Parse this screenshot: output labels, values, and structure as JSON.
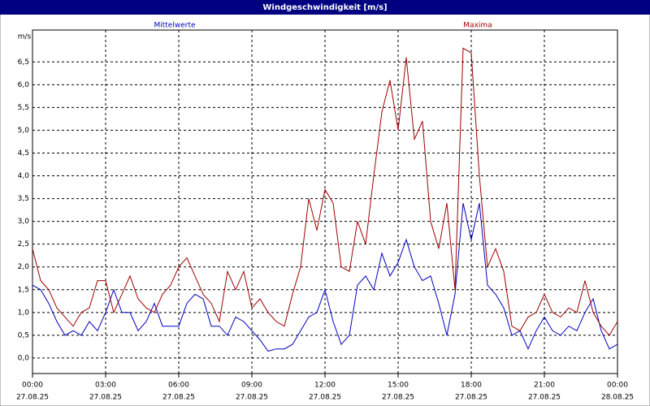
{
  "chart_data": {
    "type": "line",
    "title": "Windgeschwindigkeit [m/s]",
    "y_unit": "m/s",
    "x": [
      0,
      20,
      40,
      60,
      80,
      100,
      120,
      140,
      160,
      180,
      200,
      220,
      240,
      260,
      280,
      300,
      320,
      340,
      360,
      380,
      400,
      420,
      440,
      460,
      480,
      500,
      520,
      540,
      560,
      580,
      600,
      620,
      640,
      660,
      680,
      700,
      720,
      740,
      760,
      780,
      800,
      820,
      840,
      860,
      880,
      900,
      920,
      940,
      960,
      980,
      1000,
      1020,
      1040,
      1060,
      1080,
      1100,
      1120,
      1140,
      1160,
      1180,
      1200,
      1220,
      1240,
      1260,
      1280,
      1300,
      1320,
      1340,
      1360,
      1380,
      1400,
      1420,
      1440
    ],
    "series": [
      {
        "name": "Mittelwerte",
        "color": "#0000c0",
        "values": [
          1.6,
          1.5,
          1.2,
          0.8,
          0.5,
          0.6,
          0.5,
          0.8,
          0.6,
          1.0,
          1.5,
          1.0,
          1.0,
          0.6,
          0.8,
          1.2,
          0.7,
          0.7,
          0.7,
          1.2,
          1.4,
          1.3,
          0.7,
          0.7,
          0.5,
          0.9,
          0.8,
          0.6,
          0.4,
          0.15,
          0.2,
          0.2,
          0.3,
          0.6,
          0.9,
          1.0,
          1.5,
          0.8,
          0.3,
          0.5,
          1.6,
          1.8,
          1.5,
          2.3,
          1.8,
          2.1,
          2.6,
          2.0,
          1.7,
          1.8,
          1.2,
          0.5,
          1.4,
          3.4,
          2.6,
          3.4,
          1.6,
          1.4,
          1.1,
          0.5,
          0.6,
          0.2,
          0.6,
          0.9,
          0.6,
          0.5,
          0.7,
          0.6,
          1.0,
          1.3,
          0.6,
          0.2,
          0.3
        ]
      },
      {
        "name": "Maxima",
        "color": "#a00000",
        "values": [
          2.4,
          1.7,
          1.5,
          1.1,
          0.9,
          0.7,
          1.0,
          1.1,
          1.7,
          1.7,
          1.0,
          1.4,
          1.8,
          1.3,
          1.1,
          1.0,
          1.4,
          1.6,
          2.0,
          2.2,
          1.8,
          1.4,
          1.2,
          0.8,
          1.9,
          1.5,
          1.9,
          1.1,
          1.3,
          1.0,
          0.8,
          0.7,
          1.4,
          2.0,
          3.5,
          2.8,
          3.7,
          3.4,
          2.0,
          1.9,
          3.0,
          2.5,
          4.0,
          5.4,
          6.1,
          5.0,
          6.6,
          4.8,
          5.2,
          3.0,
          2.4,
          3.4,
          1.5,
          6.8,
          6.7,
          4.0,
          2.0,
          2.4,
          1.9,
          0.7,
          0.6,
          0.9,
          1.0,
          1.4,
          1.0,
          0.9,
          1.1,
          1.0,
          1.7,
          1.0,
          0.7,
          0.5,
          0.8
        ]
      }
    ],
    "xlim": [
      0,
      1440
    ],
    "xticks": [
      {
        "value": 0,
        "label": "00:00"
      },
      {
        "value": 180,
        "label": "03:00"
      },
      {
        "value": 360,
        "label": "06:00"
      },
      {
        "value": 540,
        "label": "09:00"
      },
      {
        "value": 720,
        "label": "12:00"
      },
      {
        "value": 900,
        "label": "15:00"
      },
      {
        "value": 1080,
        "label": "18:00"
      },
      {
        "value": 1260,
        "label": "21:00"
      },
      {
        "value": 1440,
        "label": "00:00"
      }
    ],
    "xtick_dates": [
      "27.08.25",
      "27.08.25",
      "27.08.25",
      "27.08.25",
      "27.08.25",
      "27.08.25",
      "27.08.25",
      "27.08.25",
      "28.08.25"
    ],
    "ylim": [
      -0.34,
      7.2
    ],
    "yticks": [
      {
        "value": 0,
        "label": "0,0"
      },
      {
        "value": 0.5,
        "label": "0,5"
      },
      {
        "value": 1,
        "label": "1,0"
      },
      {
        "value": 1.5,
        "label": "1,5"
      },
      {
        "value": 2,
        "label": "2,0"
      },
      {
        "value": 2.5,
        "label": "2,5"
      },
      {
        "value": 3,
        "label": "3,0"
      },
      {
        "value": 3.5,
        "label": "3,5"
      },
      {
        "value": 4,
        "label": "4,0"
      },
      {
        "value": 4.5,
        "label": "4,5"
      },
      {
        "value": 5,
        "label": "5,0"
      },
      {
        "value": 5.5,
        "label": "5,5"
      },
      {
        "value": 6,
        "label": "6,0"
      },
      {
        "value": 6.5,
        "label": "6,5"
      }
    ],
    "grid": true
  }
}
